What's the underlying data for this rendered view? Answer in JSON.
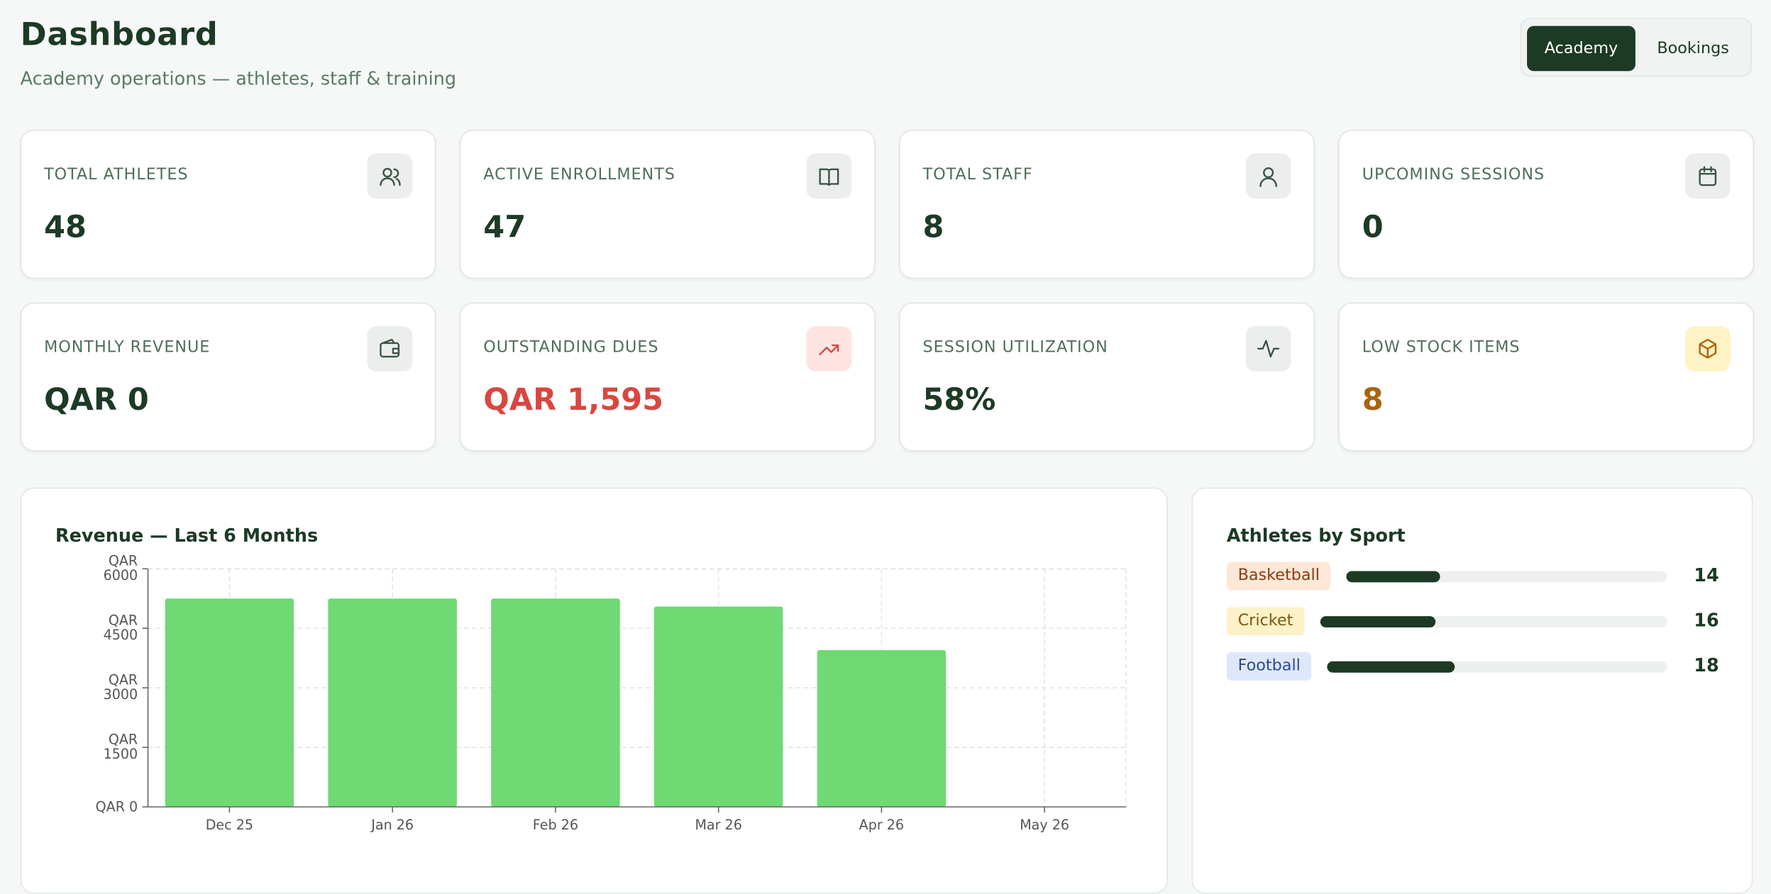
{
  "header": {
    "title": "Dashboard",
    "subtitle": "Academy operations — athletes, staff & training"
  },
  "toggle": [
    "Academy",
    "Bookings"
  ],
  "stats": [
    {
      "label": "TOTAL ATHLETES",
      "value": "48"
    },
    {
      "label": "ACTIVE ENROLLMENTS",
      "value": "47"
    },
    {
      "label": "TOTAL STAFF",
      "value": "8"
    },
    {
      "label": "UPCOMING SESSIONS",
      "value": "0"
    },
    {
      "label": "MONTHLY REVENUE",
      "value": "QAR 0"
    },
    {
      "label": "OUTSTANDING DUES",
      "value": "QAR 1,595",
      "color": "#d9473f"
    },
    {
      "label": "SESSION UTILIZATION",
      "value": "58%"
    },
    {
      "label": "LOW STOCK ITEMS",
      "value": "8",
      "color": "#a8650f"
    }
  ],
  "chart_data": {
    "type": "bar",
    "title": "Revenue — Last 6 Months",
    "categories": [
      "Dec 25",
      "Jan 26",
      "Feb 26",
      "Mar 26",
      "Apr 26",
      "May 26"
    ],
    "values": [
      5250,
      5250,
      5250,
      5050,
      3950,
      0
    ],
    "color": "#6fd973",
    "ylim": [
      0,
      6000
    ],
    "yticks": [
      {
        "value": 0,
        "label": "QAR 0"
      },
      {
        "value": 1500,
        "label": "QAR 1500"
      },
      {
        "value": 3000,
        "label": "QAR 3000"
      },
      {
        "value": 4500,
        "label": "QAR 4500"
      },
      {
        "value": 6000,
        "label": "QAR 6000"
      }
    ],
    "grid": true
  },
  "sports": {
    "title": "Athletes by Sport",
    "items": [
      {
        "name": "Basketball",
        "count": 14
      },
      {
        "name": "Cricket",
        "count": 16
      },
      {
        "name": "Football",
        "count": 18
      }
    ]
  }
}
